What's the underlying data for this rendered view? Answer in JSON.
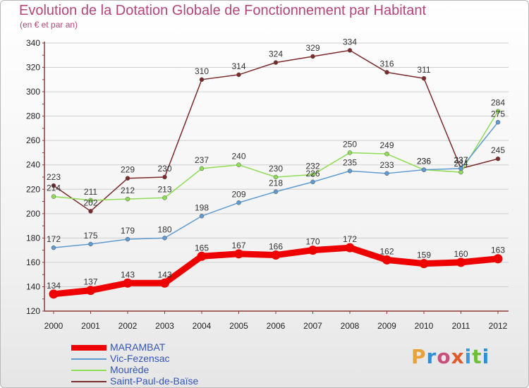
{
  "title": "Evolution de la Dotation Globale de Fonctionnement par Habitant",
  "subtitle": "(en € et par an)",
  "brand": "Proxiti",
  "brand_colors": [
    "#e8a23a",
    "#2f8fd8",
    "#c94f7d",
    "#e05a2b",
    "#3a9ad9",
    "#6cbf3a",
    "#2f8fd8"
  ],
  "colors": {
    "title": "#b3457a",
    "legend_text": "#3355bb",
    "axis": "#8f3a3a",
    "grid": "#cfcfcf"
  },
  "chart_data": {
    "type": "line",
    "title": "Evolution de la Dotation Globale de Fonctionnement par Habitant",
    "subtitle": "(en € et par an)",
    "xlabel": "",
    "ylabel": "",
    "x": [
      "2000",
      "2001",
      "2002",
      "2003",
      "2004",
      "2005",
      "2006",
      "2007",
      "2008",
      "2009",
      "2010",
      "2011",
      "2012"
    ],
    "ylim": [
      120,
      340
    ],
    "yticks": [
      120,
      140,
      160,
      180,
      200,
      220,
      240,
      260,
      280,
      300,
      320,
      340
    ],
    "grid": true,
    "legend_position": "bottom-left",
    "series": [
      {
        "name": "MARAMBAT",
        "color": "#ee0000",
        "values": [
          134,
          137,
          143,
          143,
          165,
          167,
          166,
          170,
          172,
          162,
          159,
          160,
          163
        ]
      },
      {
        "name": "Vic-Fezensac",
        "color": "#5f9bd1",
        "values": [
          172,
          175,
          179,
          180,
          198,
          209,
          218,
          226,
          235,
          233,
          236,
          237,
          275
        ]
      },
      {
        "name": "Mourède",
        "color": "#8fdc55",
        "values": [
          214,
          211,
          212,
          213,
          237,
          240,
          230,
          232,
          250,
          249,
          236,
          234,
          284
        ]
      },
      {
        "name": "Saint-Paul-de-Baïse",
        "color": "#7b2b2b",
        "values": [
          223,
          202,
          229,
          230,
          310,
          314,
          324,
          329,
          334,
          316,
          311,
          237,
          245
        ]
      }
    ]
  }
}
